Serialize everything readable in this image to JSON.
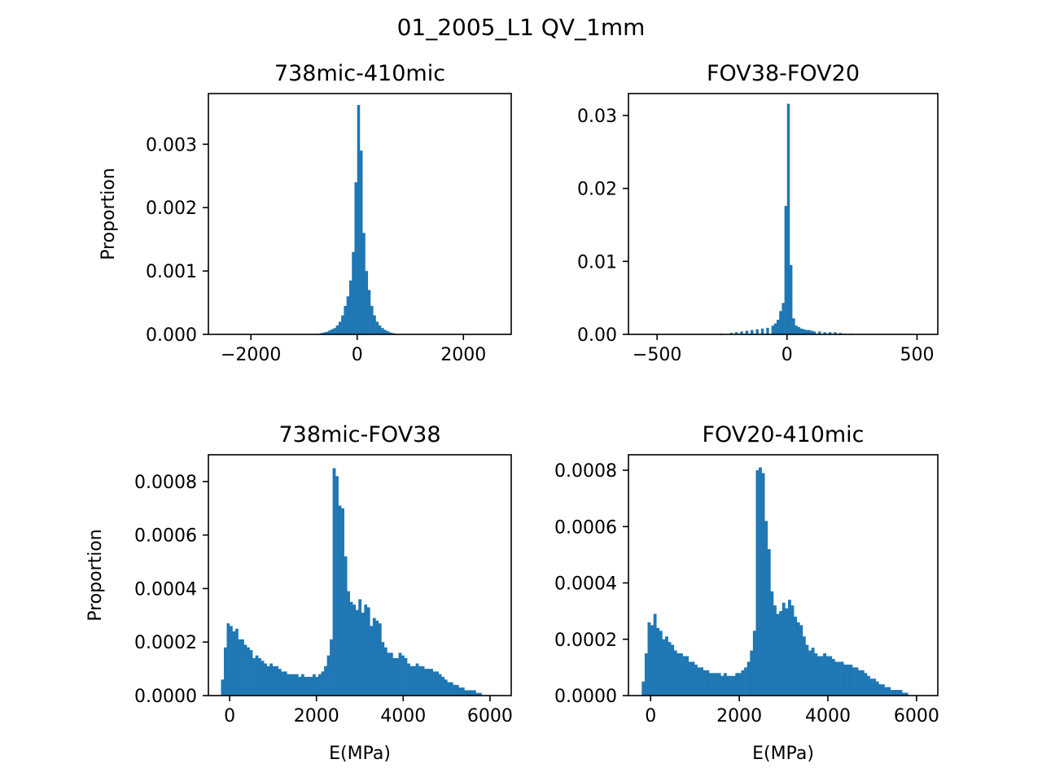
{
  "figure": {
    "suptitle": "01_2005_L1 QV_1mm",
    "bar_color": "#1f77b4"
  },
  "chart_data": [
    {
      "type": "bar",
      "title": "738mic-410mic",
      "xlabel": "",
      "ylabel": "Proportion",
      "xlim": [
        -2800,
        2900
      ],
      "ylim": [
        0,
        0.0038
      ],
      "xticks": [
        -2000,
        0,
        2000
      ],
      "xtick_labels": [
        "−2000",
        "0",
        "2000"
      ],
      "yticks": [
        0,
        0.001,
        0.002,
        0.003
      ],
      "ytick_labels": [
        "0.000",
        "0.001",
        "0.002",
        "0.003"
      ],
      "bin_width": 50,
      "bins": [
        [
          -750,
          1e-05
        ],
        [
          -700,
          2e-05
        ],
        [
          -650,
          3e-05
        ],
        [
          -600,
          4e-05
        ],
        [
          -550,
          6e-05
        ],
        [
          -500,
          8e-05
        ],
        [
          -450,
          0.0001
        ],
        [
          -400,
          0.00014
        ],
        [
          -350,
          0.0002
        ],
        [
          -300,
          0.0003
        ],
        [
          -250,
          0.00045
        ],
        [
          -200,
          0.0006
        ],
        [
          -150,
          0.00085
        ],
        [
          -100,
          0.0013
        ],
        [
          -50,
          0.0024
        ],
        [
          0,
          0.00362
        ],
        [
          50,
          0.0029
        ],
        [
          100,
          0.0016
        ],
        [
          150,
          0.001
        ],
        [
          200,
          0.0007
        ],
        [
          250,
          0.00045
        ],
        [
          300,
          0.0003
        ],
        [
          350,
          0.0002
        ],
        [
          400,
          0.00014
        ],
        [
          450,
          0.0001
        ],
        [
          500,
          7e-05
        ],
        [
          550,
          5e-05
        ],
        [
          600,
          3e-05
        ],
        [
          650,
          2e-05
        ],
        [
          700,
          1e-05
        ]
      ]
    },
    {
      "type": "bar",
      "title": "FOV38-FOV20",
      "xlabel": "",
      "ylabel": "",
      "xlim": [
        -610,
        580
      ],
      "ylim": [
        0,
        0.033
      ],
      "xticks": [
        -500,
        0,
        500
      ],
      "xtick_labels": [
        "−500",
        "0",
        "500"
      ],
      "yticks": [
        0,
        0.01,
        0.02,
        0.03
      ],
      "ytick_labels": [
        "0.00",
        "0.01",
        "0.02",
        "0.03"
      ],
      "bin_width": 10,
      "bins": [
        [
          -300,
          5e-05
        ],
        [
          -260,
          0.0001
        ],
        [
          -220,
          0.0002
        ],
        [
          -200,
          0.0003
        ],
        [
          -180,
          0.0004
        ],
        [
          -160,
          0.0005
        ],
        [
          -140,
          0.0006
        ],
        [
          -120,
          0.0007
        ],
        [
          -100,
          0.0008
        ],
        [
          -80,
          0.0009
        ],
        [
          -60,
          0.0012
        ],
        [
          -50,
          0.0015
        ],
        [
          -40,
          0.002
        ],
        [
          -30,
          0.0032
        ],
        [
          -20,
          0.0043
        ],
        [
          -10,
          0.0176
        ],
        [
          0,
          0.0316
        ],
        [
          10,
          0.0095
        ],
        [
          20,
          0.0022
        ],
        [
          30,
          0.0012
        ],
        [
          40,
          0.001
        ],
        [
          50,
          0.0008
        ],
        [
          60,
          0.0007
        ],
        [
          70,
          0.0006
        ],
        [
          80,
          0.0006
        ],
        [
          90,
          0.0005
        ],
        [
          100,
          0.0004
        ],
        [
          120,
          0.0004
        ],
        [
          140,
          0.0003
        ],
        [
          160,
          0.0003
        ],
        [
          180,
          0.0003
        ],
        [
          200,
          0.0002
        ],
        [
          220,
          0.0001
        ],
        [
          240,
          0.0001
        ],
        [
          260,
          5e-05
        ],
        [
          280,
          5e-05
        ],
        [
          300,
          3e-05
        ],
        [
          350,
          2e-05
        ],
        [
          400,
          1e-05
        ]
      ]
    },
    {
      "type": "bar",
      "title": "738mic-FOV38",
      "xlabel": "E(MPa)",
      "ylabel": "Proportion",
      "xlim": [
        -490,
        6490
      ],
      "ylim": [
        0,
        0.0009
      ],
      "xticks": [
        0,
        2000,
        4000,
        6000
      ],
      "xtick_labels": [
        "0",
        "2000",
        "4000",
        "6000"
      ],
      "yticks": [
        0,
        0.0002,
        0.0004,
        0.0006,
        0.0008
      ],
      "ytick_labels": [
        "0.0000",
        "0.0002",
        "0.0004",
        "0.0006",
        "0.0008"
      ],
      "bin_width": 66,
      "bins": [
        [
          -200,
          6e-05
        ],
        [
          -134,
          0.00018
        ],
        [
          -68,
          0.00027
        ],
        [
          -2,
          0.00026
        ],
        [
          64,
          0.00024
        ],
        [
          130,
          0.00025
        ],
        [
          196,
          0.00021
        ],
        [
          262,
          0.00021
        ],
        [
          328,
          0.00019
        ],
        [
          394,
          0.00018
        ],
        [
          460,
          0.00017
        ],
        [
          526,
          0.00014
        ],
        [
          592,
          0.00015
        ],
        [
          658,
          0.00014
        ],
        [
          724,
          0.00013
        ],
        [
          790,
          0.00012
        ],
        [
          856,
          0.00011
        ],
        [
          922,
          0.00012
        ],
        [
          988,
          0.00011
        ],
        [
          1054,
          0.00011
        ],
        [
          1120,
          0.0001
        ],
        [
          1186,
          9e-05
        ],
        [
          1252,
          9e-05
        ],
        [
          1318,
          8e-05
        ],
        [
          1384,
          8e-05
        ],
        [
          1450,
          8e-05
        ],
        [
          1516,
          8e-05
        ],
        [
          1582,
          7e-05
        ],
        [
          1648,
          8e-05
        ],
        [
          1714,
          7e-05
        ],
        [
          1780,
          7e-05
        ],
        [
          1846,
          7e-05
        ],
        [
          1912,
          8e-05
        ],
        [
          1978,
          7e-05
        ],
        [
          2044,
          8e-05
        ],
        [
          2110,
          9e-05
        ],
        [
          2176,
          0.00011
        ],
        [
          2242,
          0.00015
        ],
        [
          2308,
          0.00021
        ],
        [
          2374,
          0.00085
        ],
        [
          2440,
          0.00082
        ],
        [
          2506,
          0.00071
        ],
        [
          2572,
          0.0007
        ],
        [
          2638,
          0.00052
        ],
        [
          2704,
          0.00039
        ],
        [
          2770,
          0.00035
        ],
        [
          2836,
          0.00034
        ],
        [
          2902,
          0.00032
        ],
        [
          2968,
          0.00036
        ],
        [
          3034,
          0.00031
        ],
        [
          3100,
          0.00034
        ],
        [
          3166,
          0.00033
        ],
        [
          3232,
          0.00026
        ],
        [
          3298,
          0.00029
        ],
        [
          3364,
          0.00028
        ],
        [
          3430,
          0.00027
        ],
        [
          3496,
          0.0002
        ],
        [
          3562,
          0.00018
        ],
        [
          3628,
          0.00016
        ],
        [
          3694,
          0.00016
        ],
        [
          3760,
          0.00014
        ],
        [
          3826,
          0.00014
        ],
        [
          3892,
          0.00016
        ],
        [
          3958,
          0.00015
        ],
        [
          4024,
          0.00014
        ],
        [
          4090,
          0.00012
        ],
        [
          4156,
          0.00011
        ],
        [
          4222,
          0.00011
        ],
        [
          4288,
          0.00012
        ],
        [
          4354,
          0.00011
        ],
        [
          4420,
          0.00011
        ],
        [
          4486,
          0.0001
        ],
        [
          4552,
          0.0001
        ],
        [
          4618,
          0.0001
        ],
        [
          4684,
          9e-05
        ],
        [
          4750,
          9e-05
        ],
        [
          4816,
          8e-05
        ],
        [
          4882,
          7e-05
        ],
        [
          4948,
          6e-05
        ],
        [
          5014,
          5e-05
        ],
        [
          5080,
          5e-05
        ],
        [
          5146,
          4e-05
        ],
        [
          5212,
          4e-05
        ],
        [
          5278,
          3e-05
        ],
        [
          5344,
          3e-05
        ],
        [
          5410,
          2e-05
        ],
        [
          5476,
          2e-05
        ],
        [
          5542,
          2e-05
        ],
        [
          5608,
          2e-05
        ],
        [
          5674,
          1e-05
        ],
        [
          5740,
          1e-05
        ]
      ]
    },
    {
      "type": "bar",
      "title": "FOV20-410mic",
      "xlabel": "E(MPa)",
      "ylabel": "",
      "xlim": [
        -500,
        6480
      ],
      "ylim": [
        0,
        0.000855
      ],
      "xticks": [
        0,
        2000,
        4000,
        6000
      ],
      "xtick_labels": [
        "0",
        "2000",
        "4000",
        "6000"
      ],
      "yticks": [
        0,
        0.0002,
        0.0004,
        0.0006,
        0.0008
      ],
      "ytick_labels": [
        "0.0000",
        "0.0002",
        "0.0004",
        "0.0006",
        "0.0008"
      ],
      "bin_width": 66,
      "bins": [
        [
          -200,
          5e-05
        ],
        [
          -134,
          0.00015
        ],
        [
          -68,
          0.00026
        ],
        [
          -2,
          0.00025
        ],
        [
          64,
          0.00029
        ],
        [
          130,
          0.00024
        ],
        [
          196,
          0.00023
        ],
        [
          262,
          0.0002
        ],
        [
          328,
          0.00021
        ],
        [
          394,
          0.00019
        ],
        [
          460,
          0.00018
        ],
        [
          526,
          0.00016
        ],
        [
          592,
          0.00015
        ],
        [
          658,
          0.00015
        ],
        [
          724,
          0.00014
        ],
        [
          790,
          0.00014
        ],
        [
          856,
          0.00012
        ],
        [
          922,
          0.00012
        ],
        [
          988,
          0.00011
        ],
        [
          1054,
          0.0001
        ],
        [
          1120,
          0.0001
        ],
        [
          1186,
          9e-05
        ],
        [
          1252,
          9e-05
        ],
        [
          1318,
          8e-05
        ],
        [
          1384,
          8e-05
        ],
        [
          1450,
          8e-05
        ],
        [
          1516,
          8e-05
        ],
        [
          1582,
          7e-05
        ],
        [
          1648,
          8e-05
        ],
        [
          1714,
          7e-05
        ],
        [
          1780,
          7e-05
        ],
        [
          1846,
          7e-05
        ],
        [
          1912,
          8e-05
        ],
        [
          1978,
          8e-05
        ],
        [
          2044,
          9e-05
        ],
        [
          2110,
          0.0001
        ],
        [
          2176,
          0.00012
        ],
        [
          2242,
          0.00016
        ],
        [
          2308,
          0.00023
        ],
        [
          2374,
          0.0008
        ],
        [
          2440,
          0.00081
        ],
        [
          2506,
          0.00079
        ],
        [
          2572,
          0.00062
        ],
        [
          2638,
          0.00052
        ],
        [
          2704,
          0.00037
        ],
        [
          2770,
          0.00032
        ],
        [
          2836,
          0.00029
        ],
        [
          2902,
          0.0003
        ],
        [
          2968,
          0.00033
        ],
        [
          3034,
          0.00031
        ],
        [
          3100,
          0.00034
        ],
        [
          3166,
          0.00032
        ],
        [
          3232,
          0.00028
        ],
        [
          3298,
          0.00026
        ],
        [
          3364,
          0.00025
        ],
        [
          3430,
          0.00021
        ],
        [
          3496,
          0.00018
        ],
        [
          3562,
          0.00016
        ],
        [
          3628,
          0.00017
        ],
        [
          3694,
          0.00015
        ],
        [
          3760,
          0.00014
        ],
        [
          3826,
          0.00014
        ],
        [
          3892,
          0.00015
        ],
        [
          3958,
          0.00014
        ],
        [
          4024,
          0.00014
        ],
        [
          4090,
          0.00013
        ],
        [
          4156,
          0.00012
        ],
        [
          4222,
          0.00012
        ],
        [
          4288,
          0.00012
        ],
        [
          4354,
          0.00011
        ],
        [
          4420,
          0.00011
        ],
        [
          4486,
          0.00011
        ],
        [
          4552,
          0.0001
        ],
        [
          4618,
          0.0001
        ],
        [
          4684,
          9e-05
        ],
        [
          4750,
          9e-05
        ],
        [
          4816,
          8e-05
        ],
        [
          4882,
          7e-05
        ],
        [
          4948,
          6e-05
        ],
        [
          5014,
          6e-05
        ],
        [
          5080,
          5e-05
        ],
        [
          5146,
          4e-05
        ],
        [
          5212,
          4e-05
        ],
        [
          5278,
          3e-05
        ],
        [
          5344,
          3e-05
        ],
        [
          5410,
          2e-05
        ],
        [
          5476,
          2e-05
        ],
        [
          5542,
          2e-05
        ],
        [
          5608,
          2e-05
        ],
        [
          5674,
          1e-05
        ],
        [
          5740,
          1e-05
        ]
      ]
    }
  ]
}
